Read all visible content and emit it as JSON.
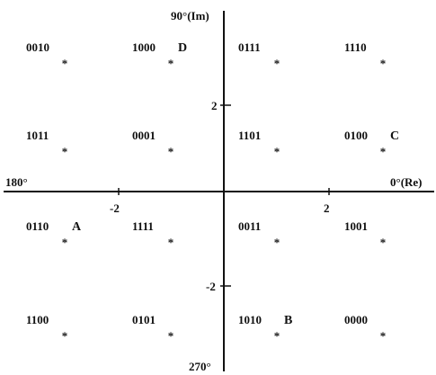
{
  "axes": {
    "top_label": "90°(Im)",
    "bottom_label": "270°",
    "left_label": "180°",
    "right_label": "0°(Re)",
    "tick_labels": [
      {
        "id": "x-neg2",
        "text": "-2"
      },
      {
        "id": "x-pos2",
        "text": "2"
      },
      {
        "id": "y-pos2",
        "text": "2"
      },
      {
        "id": "y-neg2",
        "text": "-2"
      }
    ]
  },
  "points": [
    {
      "code": "0010",
      "i": -3,
      "q": 3,
      "marker": ""
    },
    {
      "code": "1000",
      "i": -1,
      "q": 3,
      "marker": "D"
    },
    {
      "code": "0111",
      "i": 1,
      "q": 3,
      "marker": ""
    },
    {
      "code": "1110",
      "i": 3,
      "q": 3,
      "marker": ""
    },
    {
      "code": "1011",
      "i": -3,
      "q": 1,
      "marker": ""
    },
    {
      "code": "0001",
      "i": -1,
      "q": 1,
      "marker": ""
    },
    {
      "code": "1101",
      "i": 1,
      "q": 1,
      "marker": ""
    },
    {
      "code": "0100",
      "i": 3,
      "q": 1,
      "marker": "C"
    },
    {
      "code": "0110",
      "i": -3,
      "q": -1,
      "marker": "A"
    },
    {
      "code": "1111",
      "i": -1,
      "q": -1,
      "marker": ""
    },
    {
      "code": "0011",
      "i": 1,
      "q": -1,
      "marker": ""
    },
    {
      "code": "1001",
      "i": 3,
      "q": -1,
      "marker": ""
    },
    {
      "code": "1100",
      "i": -3,
      "q": -3,
      "marker": ""
    },
    {
      "code": "0101",
      "i": -1,
      "q": -3,
      "marker": ""
    },
    {
      "code": "1010",
      "i": 1,
      "q": -3,
      "marker": "B"
    },
    {
      "code": "0000",
      "i": 3,
      "q": -3,
      "marker": ""
    }
  ]
}
